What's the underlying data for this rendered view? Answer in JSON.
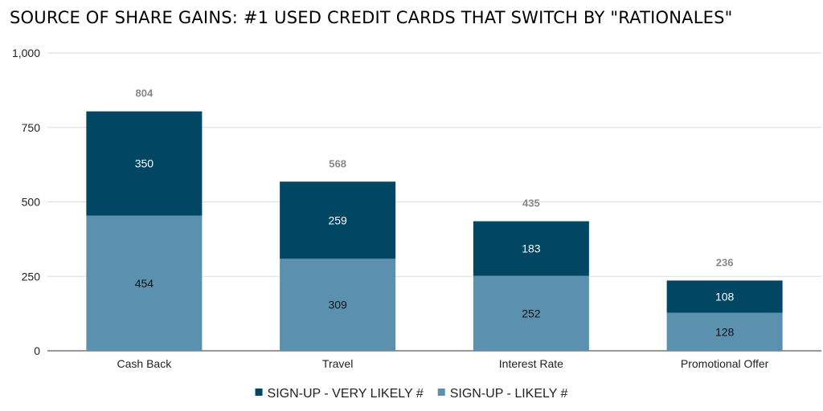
{
  "chart_data": {
    "type": "bar",
    "stacked": true,
    "title": "SOURCE OF SHARE GAINS: #1 USED CREDIT CARDS THAT SWITCH BY \"RATIONALES\"",
    "categories": [
      "Cash Back",
      "Travel",
      "Interest Rate",
      "Promotional Offer"
    ],
    "series": [
      {
        "name": "SIGN-UP - LIKELY #",
        "color": "#5b91ae",
        "values": [
          454,
          309,
          252,
          128
        ]
      },
      {
        "name": "SIGN-UP - VERY LIKELY #",
        "color": "#014662",
        "values": [
          350,
          259,
          183,
          108
        ]
      }
    ],
    "totals": [
      804,
      568,
      435,
      236
    ],
    "ylim": [
      0,
      1000
    ],
    "yticks": [
      0,
      250,
      500,
      750,
      1000
    ],
    "ytick_labels": [
      "0",
      "250",
      "500",
      "750",
      "1,000"
    ],
    "grid": true,
    "legend_position": "bottom",
    "legend_order": [
      "SIGN-UP - VERY LIKELY #",
      "SIGN-UP - LIKELY #"
    ]
  }
}
